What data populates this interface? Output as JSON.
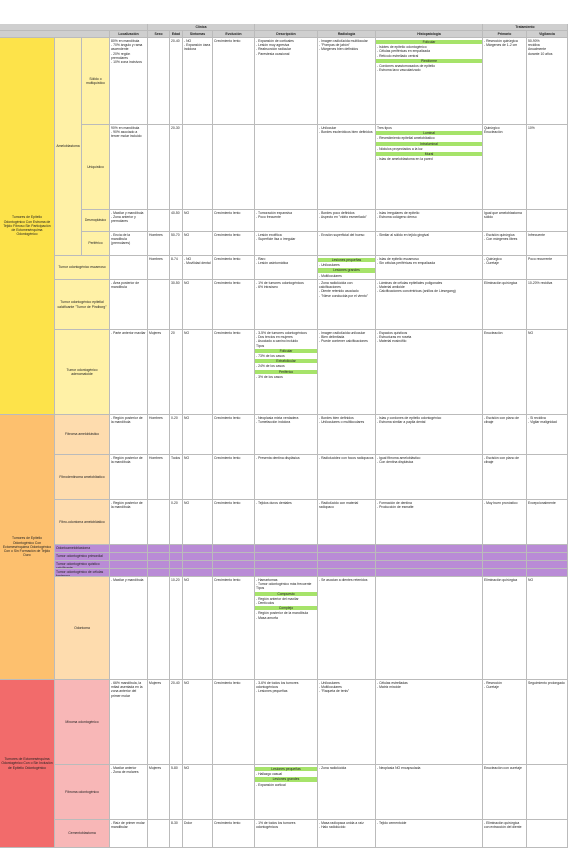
{
  "header": {
    "supergroups": {
      "clinic": "Clínica",
      "treatment": "Tratamiento"
    },
    "columns": [
      "Localización",
      "Sexo",
      "Edad",
      "Síntomas",
      "Evolución",
      "Descripción",
      "Radiología",
      "Histopatología",
      "Primario",
      "Vigilancia"
    ]
  },
  "groups": [
    {
      "label": "Tumores de Epitelio Odontogénico Con Estroma de Tejido Fibroso Sin Participación de Ectomesénquima Odontogénico",
      "color": "#fde34a",
      "tint": "#fff1a6",
      "entries": [
        {
          "name": "Ameloblastoma",
          "subtypes": [
            {
              "name": "Sólido o multiquístico",
              "cells": {
                "loc": [
                  "80% en mandíbula",
                  "- 70% ángulo y rama ascendente",
                  "- 20% región premolares",
                  "- 10% zona incisivos"
                ],
                "age": [
                  "20-40"
                ],
                "sym": [
                  "- NO",
                  "- Expansión ósea indolora"
                ],
                "evo": [
                  "Crecimiento lento"
                ],
                "desc": [
                  "- Expansión de corticales",
                  "- Lesión muy agresiva",
                  "- Reabsorción radicular",
                  "- Parestesia ocasional"
                ],
                "rad": [
                  "- Imagen radiolúcida multilocular",
                  "- \"Pompas de jabón\"",
                  "- Márgenes bien definidos"
                ],
                "his": [
                  {
                    "band": "Folicular"
                  },
                  "- Islotes de epitelio odontogénico",
                  "- Células periféricas en empalizada",
                  "- Retículo estrellado central",
                  {
                    "band": "Plexiforme"
                  },
                  "- Cordones anastomosados de epitelio",
                  "- Estroma laxo vascularizado"
                ],
                "pri": [
                  "- Resección quirúrgica",
                  "- Márgenes de 1-2 cm"
                ],
                "vig": [
                  "50-90%",
                  "recidiva",
                  "Anualmente",
                  "durante 10 años"
                ]
              }
            },
            {
              "name": "Uniquístico",
              "cells": {
                "loc": [
                  "90% en mandíbula",
                  "- 90% asociado a tercer molar incluido"
                ],
                "age": [
                  "20-30"
                ],
                "rad": [
                  "- Unilocular",
                  "- Bordes escleróticos bien definidos"
                ],
                "his": [
                  "Tres tipos",
                  {
                    "band": "Luminal"
                  },
                  "- Revestimiento epitelial ameloblástico",
                  {
                    "band": "Intraluminal"
                  },
                  "- Nódulos proyectados a la luz",
                  {
                    "band": "Mural"
                  },
                  "- Islas de ameloblastoma en la pared"
                ],
                "pri": [
                  "Quirúrgico",
                  "Enucleación"
                ],
                "vig": [
                  "10%"
                ]
              }
            },
            {
              "name": "Desmoplásico",
              "cells": {
                "loc": [
                  "- Maxilar y mandíbula",
                  "- Zona anterior y premolares"
                ],
                "age": [
                  "40-50"
                ],
                "sym": [
                  "NO"
                ],
                "evo": [
                  "Crecimiento lento"
                ],
                "desc": [
                  "- Tumoración expansiva",
                  "- Poco frecuente"
                ],
                "rad": [
                  "- Bordes poco definidos",
                  "- Aspecto en \"vidrio esmerilado\""
                ],
                "his": [
                  "- Islas irregulares de epitelio",
                  "- Estroma colágeno denso"
                ],
                "pri": [
                  "Igual que ameloblastoma sólido"
                ]
              }
            },
            {
              "name": "Periférico",
              "cells": {
                "loc": [
                  "- Encía de la mandíbula (premolares)"
                ],
                "sex": [
                  "Hombres"
                ],
                "age": [
                  "50-70"
                ],
                "sym": [
                  "NO"
                ],
                "evo": [
                  "Crecimiento lento"
                ],
                "desc": [
                  "- Lesión exofítica",
                  "- Superficie lisa o irregular"
                ],
                "rad": [
                  "- Erosión superficial del hueso"
                ],
                "his": [
                  "- Similar al sólido en tejido gingival"
                ],
                "pri": [
                  "- Escisión quirúrgica",
                  "- Con márgenes libres"
                ],
                "vig": [
                  "Infrecuente"
                ]
              }
            }
          ]
        },
        {
          "name": "Tumor odontogénico escamoso",
          "cells": {
            "sex": [
              "Hombres"
            ],
            "age": [
              "8-74"
            ],
            "sym": [
              "- NO",
              "- Movilidad dental"
            ],
            "evo": [
              "Crecimiento lento"
            ],
            "desc": [
              "- Raro",
              "- Lesión asintomática"
            ],
            "rad": [
              {
                "band": "Lesiones pequeñas"
              },
              "- Uniloculares",
              {
                "band": "Lesiones grandes"
              },
              "- Multiloculares"
            ],
            "his": [
              "- Islas de epitelio escamoso",
              "- Sin células periféricas en empalizada"
            ],
            "pri": [
              "- Quirúrgico",
              "- Curetaje"
            ],
            "vig": [
              "Poco recurrente"
            ]
          }
        },
        {
          "name": "Tumor odontogénico epitelial calcificante \"Tumor de Pindborg\"",
          "cells": {
            "loc": [
              "- Área posterior de mandíbula"
            ],
            "age": [
              "30-50"
            ],
            "sym": [
              "NO"
            ],
            "evo": [
              "Crecimiento lento"
            ],
            "desc": [
              "- 1% de tumores odontogénicos",
              "- 6% intraóseo"
            ],
            "rad": [
              "- Zona radiolúcida con calcificaciones",
              "- Diente retenido asociado",
              "- \"Nieve conducida por el viento\""
            ],
            "his": [
              "- Láminas de células epiteliales poligonales",
              "- Material amiloide",
              "- Calcificaciones concéntricas (anillos de Liesegang)"
            ],
            "pri": [
              "Eliminación quirúrgica"
            ],
            "vig": [
              "10-20% recidiva"
            ]
          }
        },
        {
          "name": "Tumor odontogénico adenomatoide",
          "cells": {
            "loc": [
              "- Parte anterior maxilar"
            ],
            "sex": [
              "Mujeres"
            ],
            "age": [
              "20"
            ],
            "sym": [
              "NO"
            ],
            "evo": [
              "Crecimiento lento"
            ],
            "desc": [
              "- 3-5% de tumores odontogénicos",
              "- Dos tercios en mujeres",
              "- Asociado a canino incluido",
              "Tipos",
              {
                "band": "Folicular"
              },
              "- 73% de los casos",
              {
                "band": "Extrafolicular"
              },
              "- 24% de los casos",
              {
                "band": "Periférico"
              },
              "- 3% de los casos"
            ],
            "rad": [
              "- Imagen radiolúcida unilocular",
              "- Bien delimitada",
              "- Puede contener calcificaciones"
            ],
            "his": [
              "- Espacios quísticos",
              "- Estructuras en roseta",
              "- Material eosinófilo"
            ],
            "pri": [
              "Enucleación"
            ],
            "vig": [
              "NO"
            ]
          }
        }
      ]
    },
    {
      "label": "Tumores de Epitelio Odontogénico Con Ectomesénquima Odontogénico Con o Sin Formación de Tejido Duro",
      "color": "#fdc06e",
      "tint": "#fedcae",
      "entries": [
        {
          "name": "Fibroma ameloblástico",
          "cells": {
            "loc": [
              "- Región posterior de la mandíbula"
            ],
            "sex": [
              "Hombres"
            ],
            "age": [
              "0-20"
            ],
            "sym": [
              "NO"
            ],
            "evo": [
              "Crecimiento lento"
            ],
            "desc": [
              "- Neoplasia mixta verdadera",
              "- Tumefacción indolora"
            ],
            "rad": [
              "- Bordes bien definidos",
              "- Uniloculares o multiloculares"
            ],
            "his": [
              "- Islas y cordones de epitelio odontogénico",
              "- Estroma similar a papila dental"
            ],
            "pri": [
              "- Escisión con plano de clivaje"
            ],
            "vig": [
              "- Si recidiva",
              "- Vigilar malignidad"
            ]
          }
        },
        {
          "name": "Fibrodentinoma ameloblástico",
          "cells": {
            "loc": [
              "- Región posterior de la mandíbula"
            ],
            "sex": [
              "Hombres"
            ],
            "age": [
              "Todos"
            ],
            "sym": [
              "NO"
            ],
            "evo": [
              "Crecimiento lento"
            ],
            "desc": [
              "- Presenta dentina displásica"
            ],
            "rad": [
              "- Radiolucidez con focos radiopacos"
            ],
            "his": [
              "- Igual fibroma ameloblástico",
              "- Con dentina displásica"
            ],
            "pri": [
              "- Escisión con plano de clivaje"
            ]
          }
        },
        {
          "name": "Fibro-odontoma ameloblástico",
          "cells": {
            "loc": [
              "- Región posterior de la mandíbula"
            ],
            "age": [
              "0-20"
            ],
            "sym": [
              "NO"
            ],
            "evo": [
              "Crecimiento lento"
            ],
            "desc": [
              "- Tejidos duros dentales"
            ],
            "rad": [
              "- Radiolúcido con material radiopaco"
            ],
            "his": [
              "- Formación de dentina",
              "- Producción de esmalte"
            ],
            "pri": [
              "- Muy buen pronóstico"
            ],
            "vig": [
              "Excepcionalmente"
            ]
          }
        },
        {
          "name": "Odontoameloblastoma",
          "color": "#b98bd6",
          "cells": {}
        },
        {
          "name": "Tumor odontogénico primordial",
          "color": "#b98bd6",
          "cells": {}
        },
        {
          "name": "Tumor odontogénico quístico calcificante",
          "color": "#b98bd6",
          "cells": {}
        },
        {
          "name": "Tumor odontogénico de células fantasma",
          "color": "#b98bd6",
          "cells": {}
        },
        {
          "name": "Odontoma",
          "cells": {
            "loc": [
              "- Maxilar y mandíbula"
            ],
            "age": [
              "10-20"
            ],
            "sym": [
              "NO"
            ],
            "evo": [
              "Crecimiento lento"
            ],
            "desc": [
              "- Hamartomas",
              "- Tumor odontogénico más frecuente",
              "Tipos",
              {
                "band": "Compuesto"
              },
              "- Región anterior del maxilar",
              "- Dentículos",
              {
                "band": "Complejo"
              },
              "- Región posterior de la mandíbula",
              "- Masa amorfa"
            ],
            "rad": [
              "- Se asocian a dientes retenidos"
            ],
            "pri": [
              "Eliminación quirúrgica"
            ],
            "vig": [
              "NO"
            ]
          }
        }
      ]
    },
    {
      "label": "Tumores de Ectomesénquima Odontogénico Con o Sin Inclusión de Epitelio Odontogénico",
      "color": "#f26b6b",
      "tint": "#f8b7b7",
      "entries": [
        {
          "name": "Mixoma odontogénico",
          "cells": {
            "loc": [
              "- 66% mandíbula, la mitad asentada en la zona anterior del primer molar"
            ],
            "sex": [
              "Mujeres"
            ],
            "age": [
              "20-40"
            ],
            "sym": [
              "NO"
            ],
            "evo": [
              "Crecimiento lento"
            ],
            "desc": [
              "- 3-6% de todos los tumores odontogénicos",
              "- Lesiones pequeñas"
            ],
            "rad": [
              "- Uniloculares",
              "- Multiloculares",
              "- \"Raqueta de tenis\""
            ],
            "his": [
              "- Células estrelladas",
              "- Matriz mixoide"
            ],
            "pri": [
              "- Resección",
              "- Curetaje"
            ],
            "vig": [
              "Seguimiento prolongado"
            ]
          }
        },
        {
          "name": "Fibroma odontogénico",
          "cells": {
            "loc": [
              "- Maxilar anterior",
              "- Zona de molares"
            ],
            "sex": [
              "Mujeres"
            ],
            "age": [
              "5-80"
            ],
            "sym": [
              "NO"
            ],
            "desc": [
              {
                "band": "Lesiones pequeñas"
              },
              "- Hallazgo casual",
              {
                "band": "Lesiones grandes"
              },
              "- Expansión cortical"
            ],
            "rad": [
              "- Zona radiolúcida"
            ],
            "his": [
              "- Neoplasia NO encapsulada"
            ],
            "pri": [
              "Enucleación con curetaje"
            ]
          }
        },
        {
          "name": "Cementoblastoma",
          "cells": {
            "loc": [
              "- Raíz de primer molar mandibular"
            ],
            "age": [
              "8-30"
            ],
            "sym": [
              "Dolor"
            ],
            "evo": [
              "Crecimiento lento"
            ],
            "desc": [
              "- 1% de todos los tumores odontogénicos"
            ],
            "rad": [
              "- Masa radiopaca unida a raíz",
              "- Halo radiolúcido"
            ],
            "his": [
              "- Tejido cementoide"
            ],
            "pri": [
              "- Eliminación quirúrgica con extracción del diente"
            ]
          }
        }
      ]
    }
  ]
}
